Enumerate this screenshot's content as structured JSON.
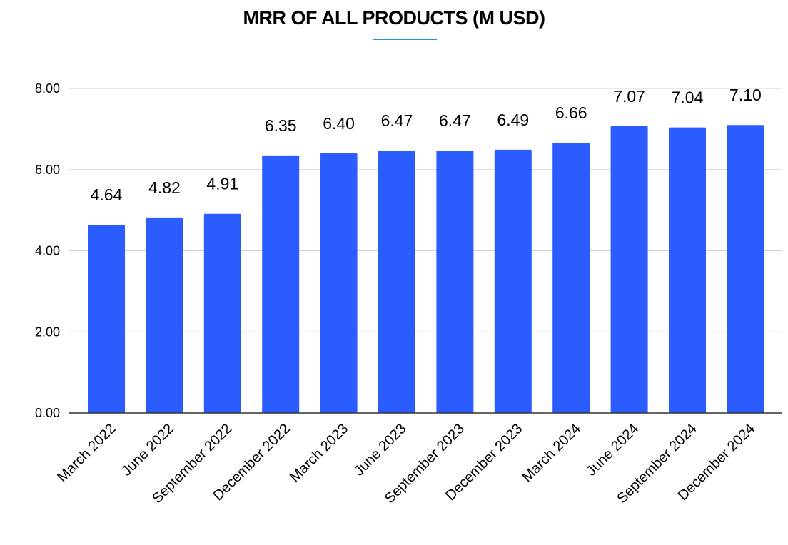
{
  "chart_data": {
    "type": "bar",
    "title": "MRR OF ALL PRODUCTS (M USD)",
    "xlabel": "",
    "ylabel": "",
    "categories": [
      "March 2022",
      "June 2022",
      "September 2022",
      "December 2022",
      "March 2023",
      "June 2023",
      "September 2023",
      "December 2023",
      "March 2024",
      "June 2024",
      "September 2024",
      "December 2024"
    ],
    "values": [
      4.64,
      4.82,
      4.91,
      6.35,
      6.4,
      6.47,
      6.47,
      6.49,
      6.66,
      7.07,
      7.04,
      7.1
    ],
    "value_labels": [
      "4.64",
      "4.82",
      "4.91",
      "6.35",
      "6.40",
      "6.47",
      "6.47",
      "6.49",
      "6.66",
      "7.07",
      "7.04",
      "7.10"
    ],
    "ylim": [
      0,
      8
    ],
    "yticks": [
      0,
      2,
      4,
      6,
      8
    ],
    "ytick_labels": [
      "0.00",
      "2.00",
      "4.00",
      "6.00",
      "8.00"
    ],
    "grid": true,
    "legend": "none",
    "bar_color": "#2b5cff",
    "title_underline_color": "#2b8fd8"
  }
}
